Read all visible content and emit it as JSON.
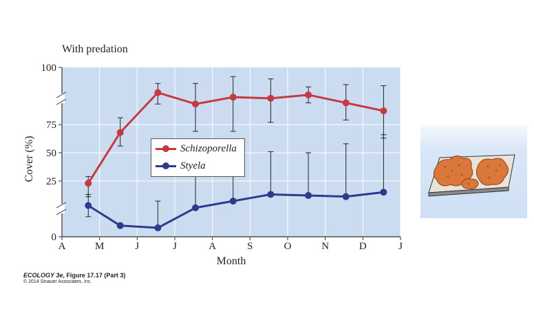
{
  "chart_data": {
    "type": "line",
    "title": "With predation",
    "xlabel": "Month",
    "ylabel": "Cover (%)",
    "categories": [
      "A",
      "M",
      "J",
      "J",
      "A",
      "S",
      "O",
      "N",
      "D",
      "J"
    ],
    "y_ticks": [
      "0",
      "25",
      "50",
      "75",
      "100"
    ],
    "axis_breaks": true,
    "grid": true,
    "legend_position": "center",
    "series": [
      {
        "name": "Schizoporella",
        "color": "#c8383f",
        "x": [
          0.7,
          1.55,
          2.55,
          3.55,
          4.55,
          5.55,
          6.55,
          7.55,
          8.55
        ],
        "values": [
          24,
          68,
          89,
          84,
          87,
          86.5,
          88,
          84.5,
          81
        ],
        "err_upper": [
          29,
          78,
          93,
          93,
          96,
          95,
          91.5,
          92.5,
          92
        ],
        "err_lower": [
          18,
          56,
          84,
          69,
          69,
          76,
          84.5,
          77,
          63
        ]
      },
      {
        "name": "Styela",
        "color": "#2e3a8c",
        "x": [
          0.7,
          1.55,
          2.55,
          3.55,
          4.55,
          5.55,
          6.55,
          7.55,
          8.55
        ],
        "values": [
          14,
          5,
          4,
          13,
          16,
          19,
          18.5,
          18,
          20
        ],
        "err_upper": [
          19,
          5,
          16,
          42,
          50,
          51,
          50,
          58,
          66
        ],
        "err_lower": [
          9,
          5,
          4,
          13,
          16,
          19,
          18.5,
          18,
          20
        ]
      }
    ]
  },
  "credit": {
    "book": "ECOLOGY 3e",
    "figure": ", Figure 17.17 (Part 3)",
    "copyright": "© 2014 Sinauer Associates, Inc."
  },
  "colors": {
    "plot_background": "#cbdcf1",
    "grid": "#ffffff",
    "axis": "#333333"
  },
  "inset": {
    "icon": "colonial-organism-tile-icon"
  }
}
